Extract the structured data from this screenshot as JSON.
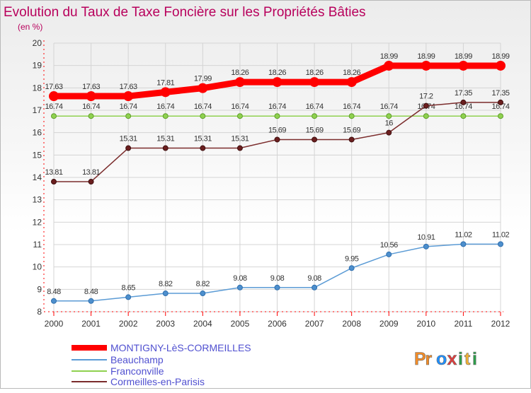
{
  "chart_data": {
    "type": "line",
    "title": "Evolution du Taux de Taxe Foncière sur les Propriétés Bâties",
    "subtitle": "(en %)",
    "x": [
      "2000",
      "2001",
      "2002",
      "2003",
      "2004",
      "2005",
      "2006",
      "2007",
      "2008",
      "2009",
      "2010",
      "2011",
      "2012"
    ],
    "ylim": [
      8,
      20
    ],
    "yticks": [
      8,
      9,
      10,
      11,
      12,
      13,
      14,
      15,
      16,
      17,
      18,
      19,
      20
    ],
    "grid": true,
    "legend_position": "bottom-left",
    "series": [
      {
        "name": "MONTIGNY-LèS-CORMEILLES",
        "color": "#ff0000",
        "values": [
          17.63,
          17.63,
          17.63,
          17.81,
          17.99,
          18.26,
          18.26,
          18.26,
          18.26,
          18.99,
          18.99,
          18.99,
          18.99
        ],
        "labels": [
          "17.63",
          "17.63",
          "17.63",
          "17.81",
          "17.99",
          "18.26",
          "18.26",
          "18.26",
          "18.26",
          "18.99",
          "18.99",
          "18.99",
          "18.99"
        ]
      },
      {
        "name": "Beauchamp",
        "color": "#5b9bd5",
        "values": [
          8.48,
          8.48,
          8.65,
          8.82,
          8.82,
          9.08,
          9.08,
          9.08,
          9.95,
          10.56,
          10.91,
          11.02,
          11.02
        ],
        "labels": [
          "8.48",
          "8.48",
          "8.65",
          "8.82",
          "8.82",
          "9.08",
          "9.08",
          "9.08",
          "9.95",
          "10.56",
          "10.91",
          "11.02",
          "11.02"
        ]
      },
      {
        "name": "Franconville",
        "color": "#8fd14f",
        "values": [
          16.74,
          16.74,
          16.74,
          16.74,
          16.74,
          16.74,
          16.74,
          16.74,
          16.74,
          16.74,
          16.74,
          16.74,
          16.74
        ],
        "labels": [
          "16.74",
          "16.74",
          "16.74",
          "16.74",
          "16.74",
          "16.74",
          "16.74",
          "16.74",
          "16.74",
          "16.74",
          "16.74",
          "16.74",
          "16.74"
        ]
      },
      {
        "name": "Cormeilles-en-Parisis",
        "color": "#7b2c2c",
        "values": [
          13.81,
          13.81,
          15.31,
          15.31,
          15.31,
          15.31,
          15.69,
          15.69,
          15.69,
          16,
          17.2,
          17.35,
          17.35
        ],
        "labels": [
          "13.81",
          "13.81",
          "15.31",
          "15.31",
          "15.31",
          "15.31",
          "15.69",
          "15.69",
          "15.69",
          "16",
          "17.2",
          "17.35",
          "17.35"
        ]
      }
    ]
  },
  "colors": {
    "title": "#b8005c",
    "axis": "#ff0000",
    "grid": "#d4d4d4",
    "legend_text": "#5050d0"
  },
  "logo": {
    "text": "Proxiti"
  }
}
